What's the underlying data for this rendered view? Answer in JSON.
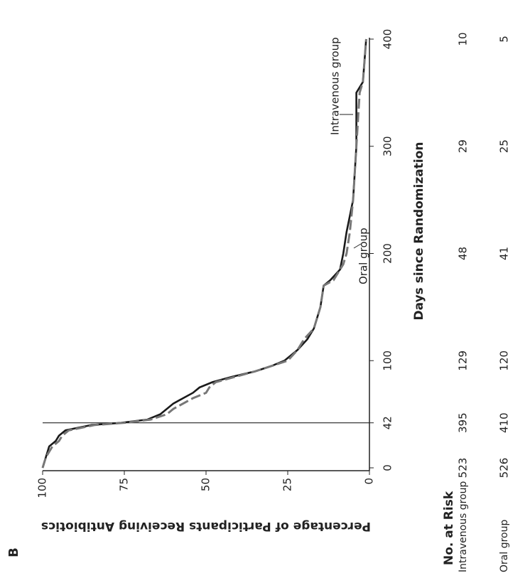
{
  "chart_data": {
    "type": "line",
    "panel_label": "B",
    "xlabel": "Days since Randomization",
    "ylabel": "Percentage of Participants Receiving Antibiotics",
    "xlim": [
      0,
      400
    ],
    "xticks": [
      0,
      42,
      100,
      200,
      300,
      400
    ],
    "ylim": [
      0,
      100
    ],
    "yticks": [
      0,
      25,
      50,
      75,
      100
    ],
    "series": [
      {
        "name": "Intravenous group",
        "color": "#1a1a1a",
        "dash": false,
        "x": [
          0,
          10,
          20,
          25,
          30,
          35,
          40,
          42,
          45,
          50,
          55,
          60,
          65,
          70,
          75,
          80,
          85,
          90,
          95,
          100,
          110,
          120,
          130,
          150,
          170,
          175,
          185,
          200,
          220,
          250,
          300,
          350,
          360,
          400
        ],
        "values": [
          100,
          99,
          98,
          96,
          95,
          93,
          85,
          76,
          68,
          64,
          62,
          60,
          57,
          54,
          52,
          48,
          42,
          35,
          30,
          26,
          22,
          19,
          17,
          15,
          14,
          12,
          9,
          8,
          7,
          5,
          4,
          4,
          2,
          1
        ]
      },
      {
        "name": "Oral group",
        "color": "#777777",
        "dash": true,
        "x": [
          0,
          10,
          20,
          25,
          30,
          35,
          40,
          42,
          45,
          50,
          55,
          60,
          65,
          70,
          75,
          80,
          85,
          90,
          95,
          100,
          110,
          120,
          130,
          150,
          170,
          175,
          180,
          190,
          200,
          220,
          250,
          300,
          350,
          360,
          400
        ],
        "values": [
          100,
          99,
          97,
          95,
          94,
          92,
          84,
          75,
          67,
          62,
          60,
          57,
          54,
          50,
          49,
          47,
          41,
          35,
          30,
          25,
          22,
          20,
          17,
          15,
          14,
          11,
          10,
          8,
          7,
          6,
          5,
          4,
          3,
          2,
          1
        ]
      }
    ]
  },
  "risk_table": {
    "title": "No. at Risk",
    "rows": [
      {
        "name": "Intravenous group",
        "values": [
          523,
          395,
          129,
          48,
          29,
          10
        ]
      },
      {
        "name": "Oral group",
        "values": [
          526,
          410,
          120,
          41,
          25,
          5
        ]
      }
    ]
  }
}
